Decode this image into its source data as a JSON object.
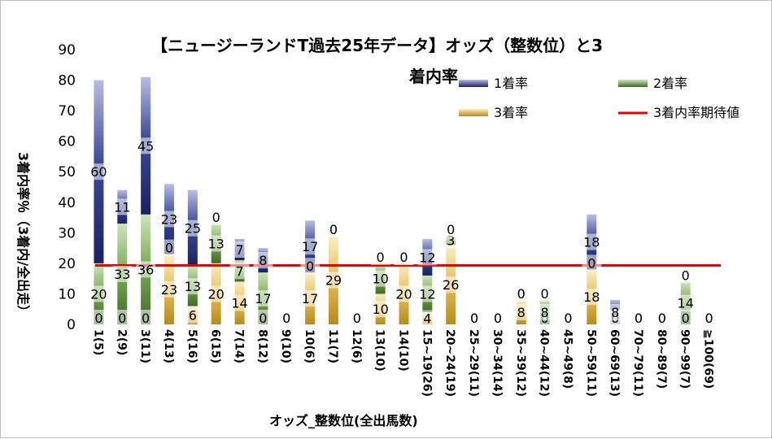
{
  "chart_data": {
    "type": "bar",
    "stacked": true,
    "title_line1": "【ニュージーランドT過去25年データ】オッズ（整数位）と3",
    "title_line2": "着内率",
    "xlabel": "オッズ_整数位(全出馬数)",
    "ylabel": "3着内率％（3着内/全出走）",
    "ylim": [
      0,
      90
    ],
    "yticks": [
      0,
      10,
      20,
      30,
      40,
      50,
      60,
      70,
      80,
      90
    ],
    "categories": [
      "1(5)",
      "2(9)",
      "3(11)",
      "4(13)",
      "5(16)",
      "6(15)",
      "7(14)",
      "8(12)",
      "9(10)",
      "10(6)",
      "11(7)",
      "12(6)",
      "13(10)",
      "14(10)",
      "15~19(26)",
      "20~24(19)",
      "25~29(11)",
      "30~34(14)",
      "35~39(12)",
      "40~44(12)",
      "45~49(8)",
      "50~59(11)",
      "60~69(13)",
      "70~79(11)",
      "80~89(7)",
      "90~99(7)",
      "≧100(69)"
    ],
    "series": [
      {
        "name": "1着率",
        "values": [
          60,
          11,
          45,
          23,
          25,
          0,
          7,
          8,
          0,
          17,
          0,
          0,
          0,
          0,
          12,
          0,
          0,
          0,
          0,
          0,
          0,
          18,
          8,
          0,
          0,
          0,
          0
        ],
        "color": "#2f3b86"
      },
      {
        "name": "2着率",
        "values": [
          20,
          33,
          36,
          0,
          13,
          13,
          7,
          17,
          0,
          0,
          0,
          0,
          10,
          0,
          12,
          3,
          0,
          0,
          0,
          8,
          0,
          0,
          0,
          0,
          0,
          14,
          0
        ],
        "color": "#5f8f3e"
      },
      {
        "name": "3着率",
        "values": [
          0,
          0,
          0,
          23,
          6,
          20,
          14,
          0,
          0,
          17,
          29,
          0,
          10,
          20,
          4,
          26,
          0,
          0,
          8,
          0,
          0,
          18,
          0,
          0,
          0,
          0,
          0
        ],
        "color": "#d4a62a"
      }
    ],
    "reference_line": {
      "name": "3着内率期待値",
      "value": 19.3,
      "color": "#e00000"
    },
    "legend_position": "top-right",
    "grid": false
  }
}
